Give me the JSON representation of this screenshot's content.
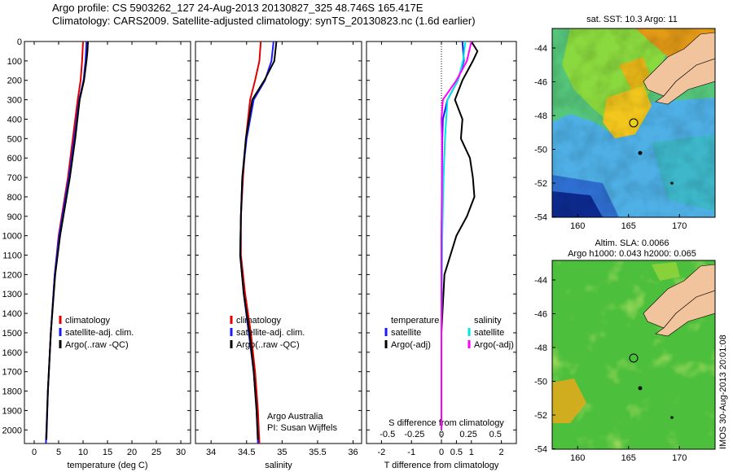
{
  "header": {
    "line1": "Argo profile: CS 5903262_127 24-Aug-2013 20130827_325 48.746S 165.417E",
    "line2": "Climatology: CARS2009. Satellite-adjusted climatology: synTS_20130823.nc (1.6d earlier)"
  },
  "colors": {
    "climatology": "#e00000",
    "satellite": "#1a1aff",
    "argo": "#000000",
    "satellite_s": "#00e5e5",
    "argo_s": "#ff00ff",
    "land": "#f2c49e"
  },
  "depth_ticks": [
    "0",
    "100",
    "200",
    "300",
    "400",
    "500",
    "600",
    "700",
    "800",
    "900",
    "1000",
    "1100",
    "1200",
    "1300",
    "1400",
    "1500",
    "1600",
    "1700",
    "1800",
    "1900",
    "2000"
  ],
  "chart_data": [
    {
      "type": "line",
      "xlabel": "temperature (deg C)",
      "xticks": [
        "0",
        "5",
        "10",
        "15",
        "20",
        "25",
        "30"
      ],
      "xlim": [
        -2,
        32
      ],
      "ylim": [
        0,
        2070
      ],
      "legend": [
        "climatology",
        "satellite-adj. clim.",
        "Argo(..raw -QC)"
      ],
      "series": [
        {
          "name": "climatology",
          "depth": [
            0,
            100,
            200,
            300,
            500,
            700,
            1000,
            1200,
            1500,
            1800,
            2070
          ],
          "values": [
            10.0,
            9.8,
            9.5,
            8.9,
            7.9,
            6.9,
            5.0,
            4.2,
            3.4,
            2.8,
            2.4
          ]
        },
        {
          "name": "satellite-adj. clim.",
          "depth": [
            0,
            100,
            200,
            300,
            500,
            700,
            1000,
            1200,
            1500,
            1800,
            2070
          ],
          "values": [
            10.7,
            10.5,
            10.1,
            9.2,
            8.2,
            7.1,
            5.1,
            4.2,
            3.4,
            2.8,
            2.4
          ]
        },
        {
          "name": "Argo(..raw -QC)",
          "depth": [
            0,
            50,
            100,
            200,
            300,
            500,
            700,
            1000,
            1200,
            1500,
            1800,
            2050
          ],
          "values": [
            11.0,
            10.9,
            10.7,
            10.2,
            9.3,
            8.4,
            7.3,
            5.3,
            4.3,
            3.4,
            2.8,
            2.5
          ]
        }
      ]
    },
    {
      "type": "line",
      "xlabel": "salinity",
      "xticks": [
        "34",
        "34.5",
        "35",
        "35.5",
        "36"
      ],
      "xlim": [
        33.78,
        36.12
      ],
      "ylim": [
        0,
        2070
      ],
      "legend": [
        "climatology",
        "satellite-adj. clim.",
        "Argo(..raw -QC)"
      ],
      "annotation": [
        "Argo Australia",
        "PI: Susan Wijffels"
      ],
      "series": [
        {
          "name": "climatology",
          "depth": [
            0,
            100,
            200,
            300,
            500,
            700,
            900,
            1100,
            1300,
            1500,
            1700,
            1900,
            2070
          ],
          "values": [
            34.7,
            34.68,
            34.62,
            34.55,
            34.49,
            34.45,
            34.42,
            34.42,
            34.48,
            34.56,
            34.62,
            34.66,
            34.68
          ]
        },
        {
          "name": "satellite-adj. clim.",
          "depth": [
            0,
            100,
            200,
            300,
            500,
            700,
            900,
            1100,
            1300,
            1500,
            1700,
            1900,
            2070
          ],
          "values": [
            34.88,
            34.85,
            34.76,
            34.6,
            34.5,
            34.44,
            34.42,
            34.41,
            34.46,
            34.53,
            34.6,
            34.64,
            34.66
          ]
        },
        {
          "name": "Argo(..raw -QC)",
          "depth": [
            0,
            100,
            200,
            300,
            500,
            700,
            900,
            1100,
            1300,
            1500,
            1700,
            1900,
            2050
          ],
          "values": [
            34.92,
            34.89,
            34.75,
            34.58,
            34.49,
            34.44,
            34.42,
            34.41,
            34.46,
            34.54,
            34.6,
            34.64,
            34.66
          ]
        }
      ]
    },
    {
      "type": "line",
      "xlabel": "T difference from climatology",
      "xticks": [
        "-2",
        "-1",
        "0",
        "0.5",
        "1",
        "2"
      ],
      "xlabel_top": "S difference from climatology",
      "xticks_top": [
        "-0.5",
        "-0.25",
        "0",
        "0.25",
        "0.5"
      ],
      "xlim": [
        -2.5,
        2.5
      ],
      "ylim": [
        0,
        2070
      ],
      "legend_headers": [
        "temperature",
        "salinity"
      ],
      "legend": [
        "satellite",
        "Argo(-adj)",
        "satellite",
        "Argo(-adj)"
      ],
      "series": [
        {
          "name": "satellite",
          "depth": [
            0,
            100,
            200,
            300,
            400,
            500,
            700,
            1000,
            1500,
            2000
          ],
          "values": [
            0.7,
            0.75,
            0.55,
            0.2,
            0.05,
            0.03,
            0.02,
            0.01,
            0.0,
            0.0
          ]
        },
        {
          "name": "Argo(-adj)",
          "depth": [
            0,
            50,
            100,
            200,
            300,
            400,
            500,
            600,
            700,
            800,
            900,
            1000,
            1200,
            1500,
            2000
          ],
          "values": [
            1.0,
            1.2,
            1.05,
            0.7,
            0.45,
            0.7,
            0.65,
            0.95,
            1.05,
            1.1,
            0.85,
            0.5,
            0.1,
            0.0,
            0.0
          ]
        },
        {
          "name": "satellite",
          "depth": [
            0,
            100,
            200,
            300,
            500,
            700,
            1000,
            1500,
            2000
          ],
          "values": [
            0.8,
            0.72,
            0.55,
            0.2,
            0.12,
            0.07,
            0.03,
            0.0,
            0.0
          ]
        },
        {
          "name": "Argo(-adj)",
          "depth": [
            0,
            100,
            200,
            300,
            400,
            500,
            700,
            1000,
            1500,
            2000
          ],
          "values": [
            1.0,
            0.85,
            0.5,
            0.05,
            0.0,
            0.02,
            0.02,
            0.0,
            0.0,
            0.0
          ]
        }
      ]
    }
  ],
  "map_top": {
    "title": "sat. SST: 10.3 Argo: 11",
    "yticks": [
      "-44",
      "-46",
      "-48",
      "-50",
      "-52",
      "-54"
    ],
    "xticks": [
      "160",
      "165",
      "170"
    ]
  },
  "map_bottom": {
    "title1": "Altim. SLA: 0.0066",
    "title2": "Argo h1000: 0.043 h2000: 0.065",
    "yticks": [
      "-44",
      "-46",
      "-48",
      "-50",
      "-52",
      "-54"
    ],
    "xticks": [
      "160",
      "165",
      "170"
    ],
    "side_label": "IMOS 30-Aug-2013 20:01:08"
  }
}
